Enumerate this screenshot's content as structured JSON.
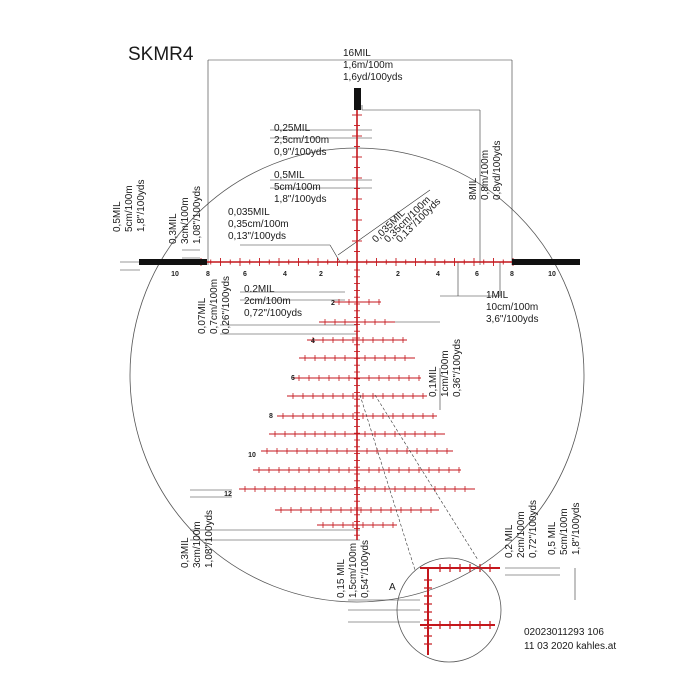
{
  "title": "SKMR4",
  "annotations": {
    "top_span": [
      "16MIL",
      "1,6m/100m",
      "1,6yd/100yds"
    ],
    "mil_025": [
      "0,25MIL",
      "2,5cm/100m",
      "0,9\"/100yds"
    ],
    "mil_05_top": [
      "0,5MIL",
      "5cm/100m",
      "1,8\"/100yds"
    ],
    "mil_8": [
      "8MIL",
      "0,8m/100m",
      "0,8yd/100yds"
    ],
    "left_05": [
      "0,5MIL",
      "5cm/100m",
      "1,8\"/100yds"
    ],
    "left_03": [
      "0,3MIL",
      "3cm/100m",
      "1,08\"/100yds"
    ],
    "left_0035": [
      "0,035MIL",
      "0,35cm/100m",
      "0,13\"/100yds"
    ],
    "diag_0035": [
      "0,035MIL",
      "0,35cm/100m",
      "0,13\"/100yds"
    ],
    "mil_02": [
      "0.2MIL",
      "2cm/100m",
      "0,72\"/100yds"
    ],
    "left_007": [
      "0,07MIL",
      "0,7cm/100m",
      "0,26\"/100yds"
    ],
    "mil_1": [
      "1MIL",
      "10cm/100m",
      "3,6\"/100yds"
    ],
    "mil_01": [
      "0,1MIL",
      "1cm/100m",
      "0,36\"/100yds"
    ],
    "bottom_03": [
      "0,3MIL",
      "3cm/100m",
      "1,08\"/100yds"
    ],
    "bottom_015": [
      "0,15 MIL",
      "1,5cm/100m",
      "0,54\"/100yds"
    ],
    "detail_02": [
      "0,2 MIL",
      "2cm/100m",
      "0,72\"/100yds"
    ],
    "detail_05": [
      "0,5 MIL",
      "5cm/100m",
      "1,8\"/100yds"
    ],
    "detail_label": "A",
    "footer": [
      "02023011293 106",
      "11 03 2020 kahles.at"
    ]
  },
  "scale": {
    "left_numbers": [
      "10",
      "8",
      "6",
      "4",
      "2"
    ],
    "right_numbers": [
      "2",
      "4",
      "6",
      "8",
      "10"
    ],
    "drop_numbers": [
      "2",
      "4",
      "6",
      "8",
      "10",
      "12"
    ]
  },
  "colors": {
    "reticle": "#c4161c",
    "ink": "#111111"
  }
}
